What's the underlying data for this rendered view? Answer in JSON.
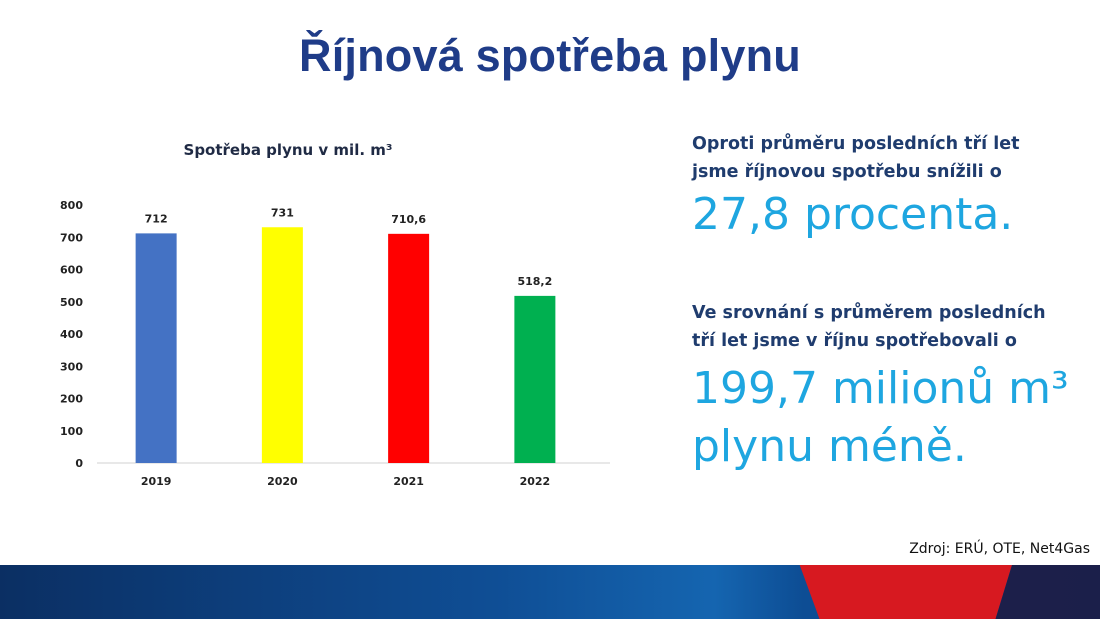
{
  "slide": {
    "title": "Říjnová spotřeba plynu",
    "paragraph1": [
      "Oproti průměru posledních tří let",
      "jsme říjnovou spotřebu snížili o"
    ],
    "highlight1": "27,8 procenta.",
    "paragraph2": [
      "Ve srovnání s průměrem posledních",
      "tří let jsme v říjnu spotřebovali o"
    ],
    "highlight2": [
      "199,7 milionů m³",
      "plynu méně."
    ],
    "source": "Zdroj: ERÚ, OTE, Net4Gas"
  },
  "chart_data": {
    "type": "bar",
    "title": "Spotřeba plynu v mil. m³",
    "categories": [
      "2019",
      "2020",
      "2021",
      "2022"
    ],
    "values": [
      712,
      731,
      710.6,
      518.2
    ],
    "data_labels": [
      "712",
      "731",
      "710,6",
      "518,2"
    ],
    "bar_colors": [
      "#4472c4",
      "#ffff00",
      "#ff0000",
      "#00b050"
    ],
    "ylim": [
      0,
      800
    ],
    "yticks": [
      0,
      100,
      200,
      300,
      400,
      500,
      600,
      700,
      800
    ],
    "grid": false,
    "legend": "none",
    "xlabel": "",
    "ylabel": ""
  },
  "colors": {
    "title": "#1f3c88",
    "text": "#1f3c6e",
    "highlight": "#1ea6e0",
    "footer_blue": "#0f4e95",
    "footer_red": "#d71920",
    "footer_dark": "#1b1f4a"
  }
}
